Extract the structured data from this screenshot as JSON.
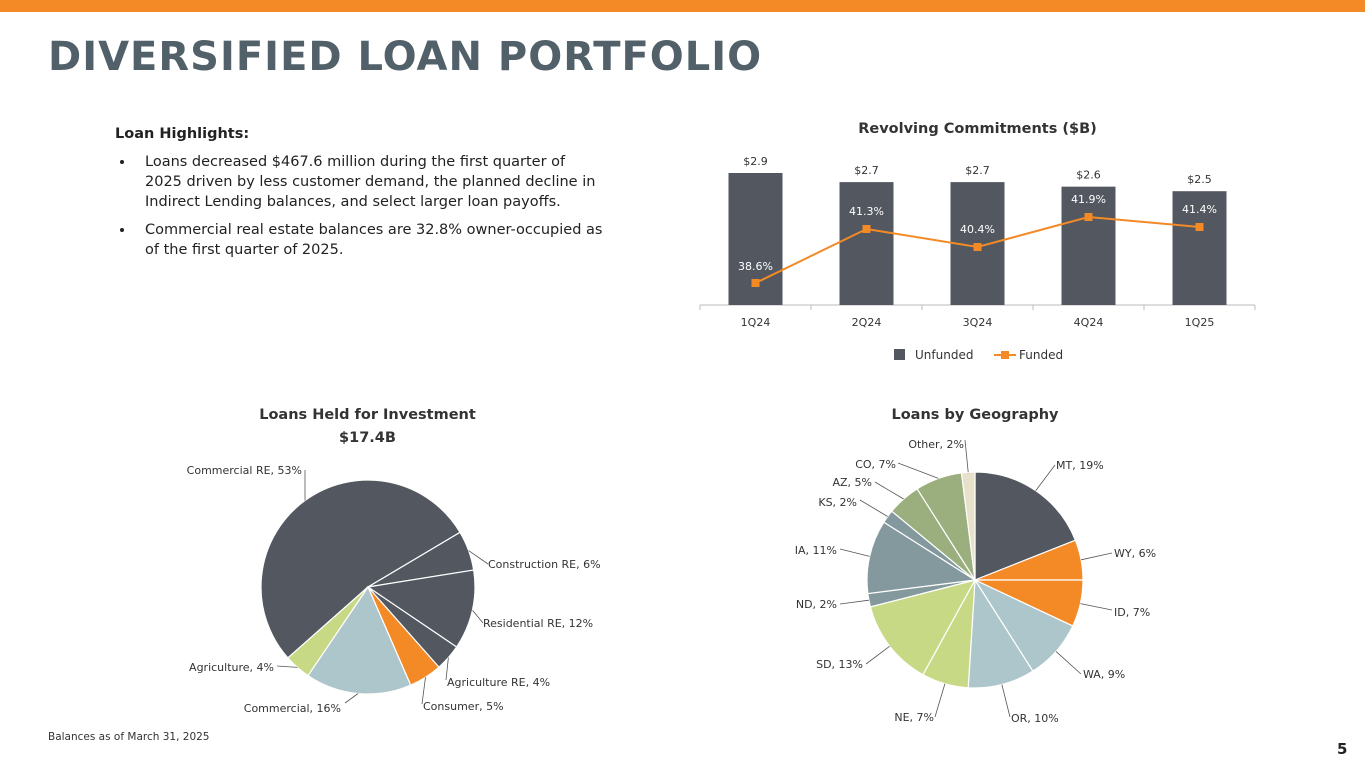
{
  "header": {
    "title": "DIVERSIFIED LOAN PORTFOLIO",
    "accent_color": "#f38a26"
  },
  "highlights": {
    "heading": "Loan Highlights:",
    "bullets": [
      "Loans decreased $467.6 million during the first quarter of 2025 driven by less customer demand, the planned decline in Indirect Lending balances, and select larger loan payoffs.",
      "Commercial real estate balances are 32.8% owner-occupied as of the first quarter of 2025."
    ]
  },
  "footnote": "Balances as of March 31, 2025",
  "page_number": "5",
  "chart_data": [
    {
      "type": "bar",
      "title": "Revolving Commitments ($B)",
      "categories": [
        "1Q24",
        "2Q24",
        "3Q24",
        "4Q24",
        "1Q25"
      ],
      "series": [
        {
          "name": "Unfunded",
          "kind": "bar",
          "color": "#525760",
          "values": [
            2.9,
            2.7,
            2.7,
            2.6,
            2.5
          ],
          "labels": [
            "$2.9",
            "$2.7",
            "$2.7",
            "$2.6",
            "$2.5"
          ]
        },
        {
          "name": "Funded",
          "kind": "line",
          "color": "#f38a26",
          "values": [
            38.6,
            41.3,
            40.4,
            41.9,
            41.4
          ],
          "labels": [
            "38.6%",
            "41.3%",
            "40.4%",
            "41.9%",
            "41.4%"
          ]
        }
      ],
      "legend": "bottom"
    },
    {
      "type": "pie",
      "title": "Loans Held for Investment",
      "subtitle": "$17.4B",
      "slices": [
        {
          "label": "Commercial RE, 53%",
          "value": 53,
          "color": "#525760"
        },
        {
          "label": "Construction RE, 6%",
          "value": 6,
          "color": "#525760"
        },
        {
          "label": "Residential RE, 12%",
          "value": 12,
          "color": "#525760"
        },
        {
          "label": "Agriculture RE, 4%",
          "value": 4,
          "color": "#525760"
        },
        {
          "label": "Consumer, 5%",
          "value": 5,
          "color": "#f38a26"
        },
        {
          "label": "Commercial, 16%",
          "value": 16,
          "color": "#adc6cc"
        },
        {
          "label": "Agriculture, 4%",
          "value": 4,
          "color": "#c8d986"
        }
      ]
    },
    {
      "type": "pie",
      "title": "Loans by Geography",
      "slices": [
        {
          "label": "MT, 19%",
          "value": 19,
          "color": "#525760"
        },
        {
          "label": "WY, 6%",
          "value": 6,
          "color": "#f38a26"
        },
        {
          "label": "ID, 7%",
          "value": 7,
          "color": "#f38a26"
        },
        {
          "label": "WA, 9%",
          "value": 9,
          "color": "#adc6cc"
        },
        {
          "label": "OR, 10%",
          "value": 10,
          "color": "#adc6cc"
        },
        {
          "label": "NE, 7%",
          "value": 7,
          "color": "#c8d986"
        },
        {
          "label": "SD, 13%",
          "value": 13,
          "color": "#c8d986"
        },
        {
          "label": "ND, 2%",
          "value": 2,
          "color": "#84999e"
        },
        {
          "label": "IA, 11%",
          "value": 11,
          "color": "#84999e"
        },
        {
          "label": "KS, 2%",
          "value": 2,
          "color": "#84999e"
        },
        {
          "label": "AZ, 5%",
          "value": 5,
          "color": "#9aaf7d"
        },
        {
          "label": "CO, 7%",
          "value": 7,
          "color": "#9aaf7d"
        },
        {
          "label": "Other, 2%",
          "value": 2,
          "color": "#e8e1c9"
        }
      ]
    }
  ]
}
